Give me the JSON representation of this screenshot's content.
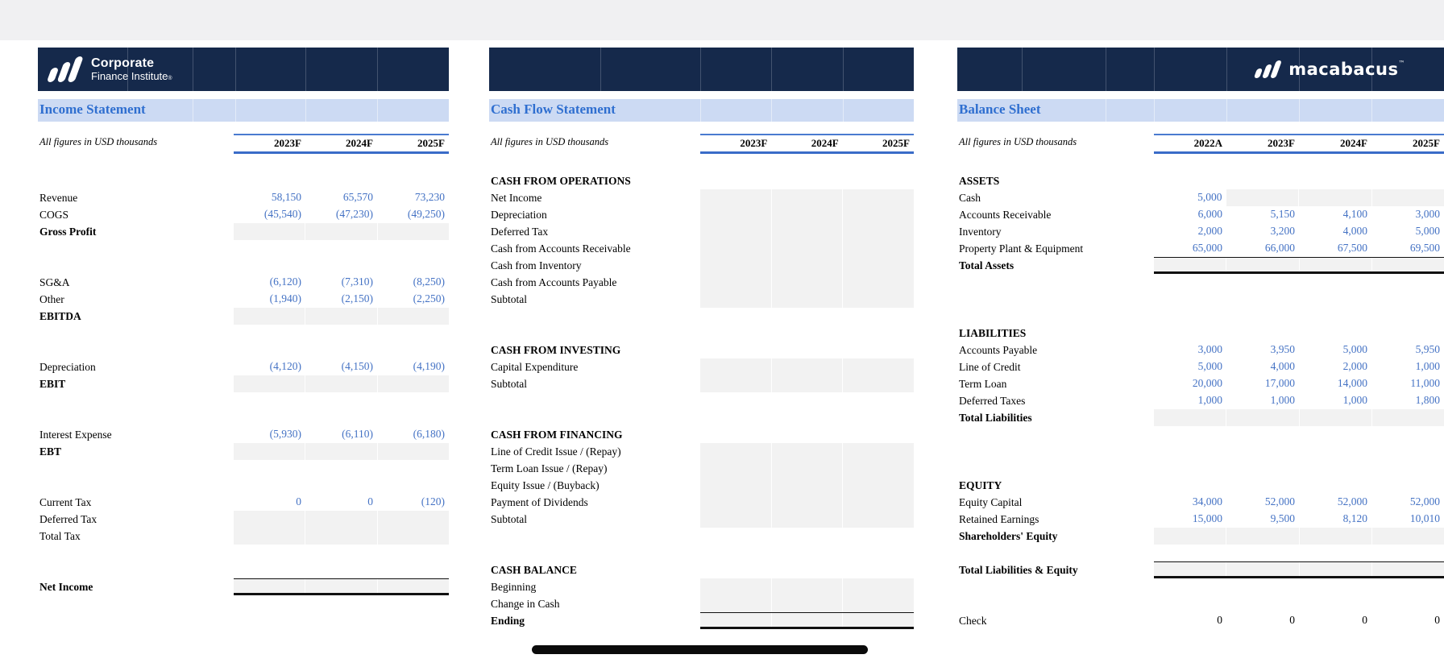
{
  "colors": {
    "top_strip": "#f0f0f2",
    "header_bar": "#15294b",
    "title_bar_bg": "#ccdaf3",
    "title_text_blue": "#2f6fd0",
    "header_rule_blue": "#3a6cc8",
    "number_blue": "#4472c4",
    "input_cell_gray": "#f2f2f2",
    "total_border_black": "#111111"
  },
  "brand": {
    "cfi_line1": "Corporate",
    "cfi_line2": "Finance Institute",
    "cfi_registered": "®",
    "macabacus": "macabacus",
    "macabacus_tm": "™"
  },
  "panels": [
    {
      "id": "income-statement",
      "title": "Income Statement",
      "note": "All figures in USD thousands",
      "columns": [
        "2023F",
        "2024F",
        "2025F"
      ],
      "rows": [
        null,
        {
          "label": "Revenue",
          "vals": [
            "58,150",
            "65,570",
            "73,230"
          ]
        },
        {
          "label": "COGS",
          "vals": [
            "(45,540)",
            "(47,230)",
            "(49,250)"
          ]
        },
        {
          "label": "Gross Profit",
          "b": true,
          "gray": true
        },
        null,
        null,
        {
          "label": "SG&A",
          "vals": [
            "(6,120)",
            "(7,310)",
            "(8,250)"
          ]
        },
        {
          "label": "Other",
          "vals": [
            "(1,940)",
            "(2,150)",
            "(2,250)"
          ]
        },
        {
          "label": "EBITDA",
          "b": true,
          "gray": true
        },
        null,
        null,
        {
          "label": "Depreciation",
          "vals": [
            "(4,120)",
            "(4,150)",
            "(4,190)"
          ]
        },
        {
          "label": "EBIT",
          "b": true,
          "gray": true
        },
        null,
        null,
        {
          "label": "Interest Expense",
          "vals": [
            "(5,930)",
            "(6,110)",
            "(6,180)"
          ]
        },
        {
          "label": "EBT",
          "b": true,
          "gray": true
        },
        null,
        null,
        {
          "label": "Current Tax",
          "vals": [
            "0",
            "0",
            "(120)"
          ]
        },
        {
          "label": "Deferred Tax",
          "gray": true
        },
        {
          "label": "Total Tax",
          "gray": true
        },
        null,
        null,
        {
          "label": "Net Income",
          "b": true,
          "gray": true,
          "top": true,
          "bot": true
        }
      ]
    },
    {
      "id": "cash-flow-statement",
      "title": "Cash Flow Statement",
      "note": "All figures in USD thousands",
      "columns": [
        "2023F",
        "2024F",
        "2025F"
      ],
      "rows": [
        {
          "label": "CASH FROM OPERATIONS",
          "sec": true
        },
        {
          "label": "Net Income",
          "gray": true
        },
        {
          "label": "Depreciation",
          "gray": true
        },
        {
          "label": "Deferred Tax",
          "gray": true
        },
        {
          "label": "Cash from Accounts Receivable",
          "gray": true
        },
        {
          "label": "Cash from Inventory",
          "gray": true
        },
        {
          "label": "Cash from Accounts Payable",
          "gray": true
        },
        {
          "label": "Subtotal",
          "gray": true
        },
        null,
        null,
        {
          "label": "CASH FROM INVESTING",
          "sec": true
        },
        {
          "label": "Capital Expenditure",
          "gray": true
        },
        {
          "label": "Subtotal",
          "gray": true
        },
        null,
        null,
        {
          "label": "CASH FROM FINANCING",
          "sec": true
        },
        {
          "label": "Line of Credit Issue / (Repay)",
          "gray": true
        },
        {
          "label": "Term Loan Issue / (Repay)",
          "gray": true
        },
        {
          "label": "Equity Issue / (Buyback)",
          "gray": true
        },
        {
          "label": "Payment of Dividends",
          "gray": true
        },
        {
          "label": "Subtotal",
          "gray": true
        },
        null,
        null,
        {
          "label": "CASH BALANCE",
          "sec": true
        },
        {
          "label": "Beginning",
          "gray": true
        },
        {
          "label": "Change in Cash",
          "gray": true
        },
        {
          "label": "Ending",
          "b": true,
          "gray": true,
          "top": true,
          "bot": true
        }
      ]
    },
    {
      "id": "balance-sheet",
      "title": "Balance Sheet",
      "note": "All figures in USD thousands",
      "columns": [
        "2022A",
        "2023F",
        "2024F",
        "2025F"
      ],
      "rows": [
        {
          "label": "ASSETS",
          "sec": true
        },
        {
          "label": "Cash",
          "vals": [
            "5,000",
            "",
            "",
            ""
          ],
          "gray": [
            false,
            true,
            true,
            true
          ]
        },
        {
          "label": "Accounts Receivable",
          "vals": [
            "6,000",
            "5,150",
            "4,100",
            "3,000"
          ]
        },
        {
          "label": "Inventory",
          "vals": [
            "2,000",
            "3,200",
            "4,000",
            "5,000"
          ]
        },
        {
          "label": "Property Plant & Equipment",
          "vals": [
            "65,000",
            "66,000",
            "67,500",
            "69,500"
          ]
        },
        {
          "label": "Total Assets",
          "b": true,
          "gray": true,
          "top": true,
          "bot": true
        },
        null,
        null,
        null,
        {
          "label": "LIABILITIES",
          "sec": true
        },
        {
          "label": "Accounts Payable",
          "vals": [
            "3,000",
            "3,950",
            "5,000",
            "5,950"
          ]
        },
        {
          "label": "Line of Credit",
          "vals": [
            "5,000",
            "4,000",
            "2,000",
            "1,000"
          ]
        },
        {
          "label": "Term Loan",
          "vals": [
            "20,000",
            "17,000",
            "14,000",
            "11,000"
          ]
        },
        {
          "label": "Deferred Taxes",
          "vals": [
            "1,000",
            "1,000",
            "1,000",
            "1,800"
          ]
        },
        {
          "label": "Total Liabilities",
          "b": true,
          "gray": true
        },
        null,
        null,
        null,
        {
          "label": "EQUITY",
          "sec": true
        },
        {
          "label": "Equity Capital",
          "vals": [
            "34,000",
            "52,000",
            "52,000",
            "52,000"
          ]
        },
        {
          "label": "Retained Earnings",
          "vals": [
            "15,000",
            "9,500",
            "8,120",
            "10,010"
          ]
        },
        {
          "label": "Shareholders' Equity",
          "b": true,
          "gray": true
        },
        null,
        {
          "label": "Total Liabilities & Equity",
          "b": true,
          "gray": true,
          "top": true,
          "bot": true
        },
        null,
        null,
        {
          "label": "Check",
          "vals": [
            "0",
            "0",
            "0",
            "0"
          ],
          "dark": true
        }
      ]
    }
  ]
}
